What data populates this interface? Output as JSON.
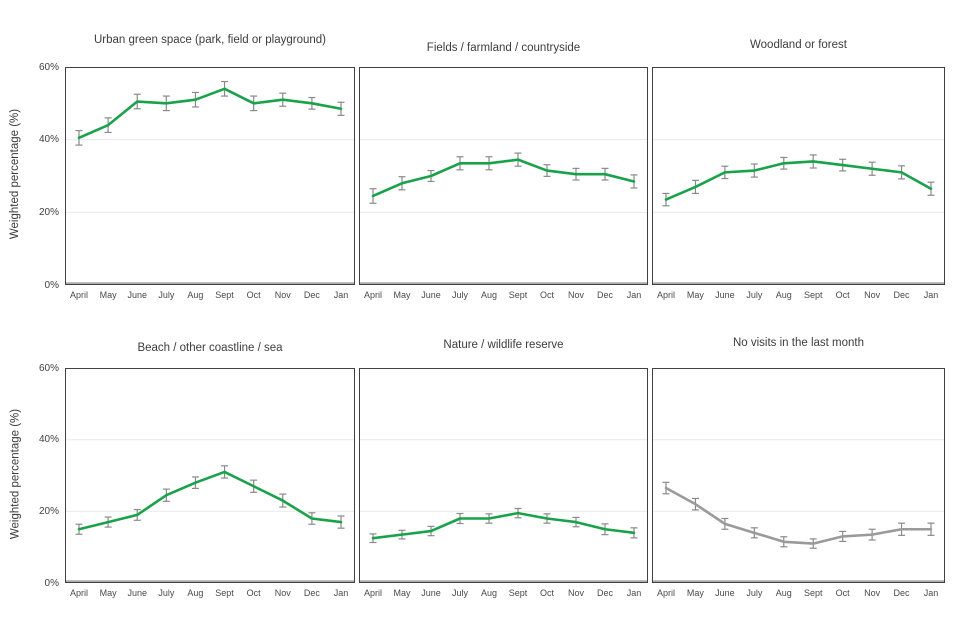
{
  "figure": {
    "y_axis_label": "Weighted percentage (%)",
    "months": [
      "April",
      "May",
      "June",
      "July",
      "Aug",
      "Sept",
      "Oct",
      "Nov",
      "Dec",
      "Jan"
    ],
    "y_tick_labels": [
      "0%",
      "20%",
      "40%",
      "60%"
    ],
    "line_green": "#1aa24a",
    "line_gray": "#9a9a9a",
    "error_bar_color": "#8a8a8a"
  },
  "chart_data": [
    {
      "type": "line",
      "title": "Urban green space (park, field or playground)",
      "categories": [
        "April",
        "May",
        "June",
        "July",
        "Aug",
        "Sept",
        "Oct",
        "Nov",
        "Dec",
        "Jan"
      ],
      "values": [
        40.5,
        44,
        50.5,
        50,
        51,
        54,
        50,
        51,
        50,
        48.5
      ],
      "errors": [
        2,
        2,
        2,
        2,
        2,
        2,
        2,
        1.8,
        1.6,
        1.8
      ],
      "color": "#1aa24a",
      "ylabel": "Weighted percentage (%)",
      "ylim": [
        0,
        60
      ],
      "yticks": [
        0,
        20,
        40,
        60
      ],
      "grid": true
    },
    {
      "type": "line",
      "title": "Fields / farmland / countryside",
      "categories": [
        "April",
        "May",
        "June",
        "July",
        "Aug",
        "Sept",
        "Oct",
        "Nov",
        "Dec",
        "Jan"
      ],
      "values": [
        24.5,
        28,
        30,
        33.5,
        33.5,
        34.5,
        31.5,
        30.5,
        30.5,
        28.5
      ],
      "errors": [
        2,
        1.8,
        1.5,
        1.8,
        1.8,
        1.8,
        1.6,
        1.6,
        1.6,
        1.8
      ],
      "color": "#1aa24a",
      "ylabel": "Weighted percentage (%)",
      "ylim": [
        0,
        60
      ],
      "yticks": [
        0,
        20,
        40,
        60
      ],
      "grid": true
    },
    {
      "type": "line",
      "title": "Woodland or forest",
      "categories": [
        "April",
        "May",
        "June",
        "July",
        "Aug",
        "Sept",
        "Oct",
        "Nov",
        "Dec",
        "Jan"
      ],
      "values": [
        23.5,
        27,
        31,
        31.5,
        33.5,
        34,
        33,
        32,
        31,
        26.5
      ],
      "errors": [
        1.7,
        1.8,
        1.7,
        1.8,
        1.6,
        1.8,
        1.6,
        1.8,
        1.8,
        1.8
      ],
      "color": "#1aa24a",
      "ylabel": "Weighted percentage (%)",
      "ylim": [
        0,
        60
      ],
      "yticks": [
        0,
        20,
        40,
        60
      ],
      "grid": true
    },
    {
      "type": "line",
      "title": "Beach / other coastline / sea",
      "categories": [
        "April",
        "May",
        "June",
        "July",
        "Aug",
        "Sept",
        "Oct",
        "Nov",
        "Dec",
        "Jan"
      ],
      "values": [
        15,
        17,
        19,
        24.5,
        28,
        31,
        27,
        23,
        18,
        17
      ],
      "errors": [
        1.4,
        1.4,
        1.5,
        1.7,
        1.6,
        1.7,
        1.7,
        1.8,
        1.6,
        1.7
      ],
      "color": "#1aa24a",
      "ylabel": "Weighted percentage (%)",
      "ylim": [
        0,
        60
      ],
      "yticks": [
        0,
        20,
        40,
        60
      ],
      "grid": true
    },
    {
      "type": "line",
      "title": "Nature / wildlife reserve",
      "categories": [
        "April",
        "May",
        "June",
        "July",
        "Aug",
        "Sept",
        "Oct",
        "Nov",
        "Dec",
        "Jan"
      ],
      "values": [
        12.5,
        13.5,
        14.5,
        18,
        18,
        19.5,
        18,
        17,
        15,
        14
      ],
      "errors": [
        1.2,
        1.2,
        1.3,
        1.4,
        1.3,
        1.3,
        1.3,
        1.3,
        1.5,
        1.4
      ],
      "color": "#1aa24a",
      "ylabel": "Weighted percentage (%)",
      "ylim": [
        0,
        60
      ],
      "yticks": [
        0,
        20,
        40,
        60
      ],
      "grid": true
    },
    {
      "type": "line",
      "title": "No visits in the last month",
      "categories": [
        "April",
        "May",
        "June",
        "July",
        "Aug",
        "Sept",
        "Oct",
        "Nov",
        "Dec",
        "Jan"
      ],
      "values": [
        26.5,
        22,
        16.5,
        14,
        11.5,
        11,
        13,
        13.5,
        15,
        15
      ],
      "errors": [
        1.6,
        1.6,
        1.5,
        1.4,
        1.4,
        1.3,
        1.4,
        1.5,
        1.7,
        1.7
      ],
      "color": "#9a9a9a",
      "ylabel": "Weighted percentage (%)",
      "ylim": [
        0,
        60
      ],
      "yticks": [
        0,
        20,
        40,
        60
      ],
      "grid": true
    }
  ]
}
